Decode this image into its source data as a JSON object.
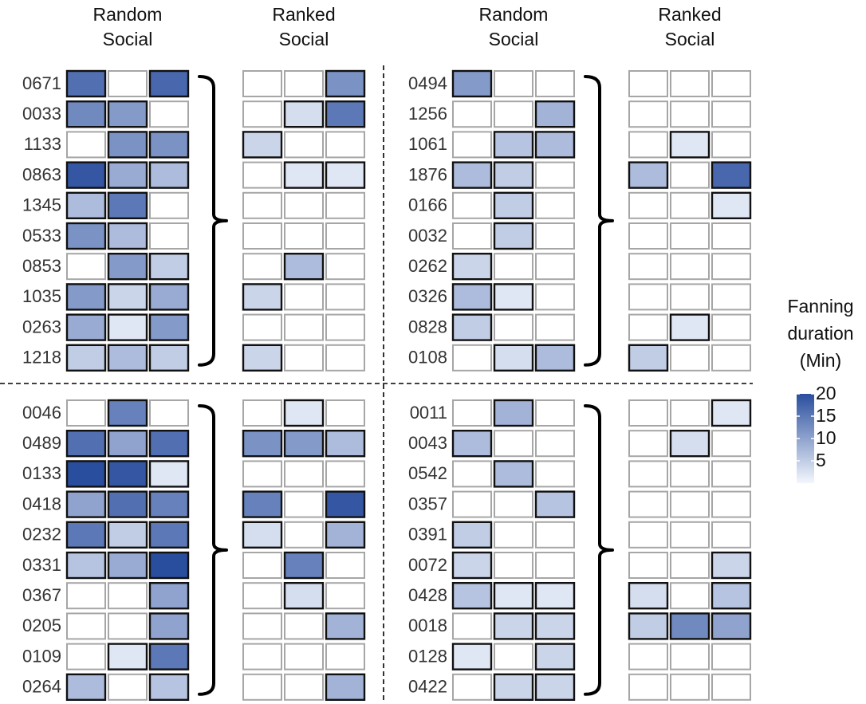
{
  "chart_data": {
    "type": "heatmap",
    "legend": {
      "title_lines": [
        "Fanning",
        "duration",
        "(Min)"
      ],
      "ticks": [
        20,
        15,
        10,
        5
      ],
      "range": [
        0,
        20
      ],
      "color_low": "#f3f7fd",
      "color_high": "#2a4e9e",
      "placement": "right"
    },
    "colors": {
      "empty_border": "#a6a6a6",
      "filled_border": "#111111",
      "empty_fill": "#ffffff",
      "separator": "#000000",
      "label_text": "#333333"
    },
    "group_headers": {
      "random": [
        "Random",
        "Social"
      ],
      "ranked": [
        "Ranked",
        "Social"
      ]
    },
    "panels": [
      {
        "rows": [
          {
            "id": "0671",
            "random": [
              16,
              0,
              17
            ],
            "ranked": [
              0,
              0,
              12
            ]
          },
          {
            "id": "0033",
            "random": [
              13,
              11,
              0
            ],
            "ranked": [
              0,
              3,
              15
            ]
          },
          {
            "id": "1133",
            "random": [
              0,
              12,
              12
            ],
            "ranked": [
              4,
              0,
              0
            ]
          },
          {
            "id": "0863",
            "random": [
              19,
              9,
              7
            ],
            "ranked": [
              0,
              2,
              2
            ]
          },
          {
            "id": "1345",
            "random": [
              7,
              15,
              0
            ],
            "ranked": [
              0,
              0,
              0
            ]
          },
          {
            "id": "0533",
            "random": [
              12,
              7,
              0
            ],
            "ranked": [
              0,
              0,
              0
            ]
          },
          {
            "id": "0853",
            "random": [
              0,
              11,
              5
            ],
            "ranked": [
              0,
              7,
              0
            ]
          },
          {
            "id": "1035",
            "random": [
              11,
              4,
              9
            ],
            "ranked": [
              4,
              0,
              0
            ]
          },
          {
            "id": "0263",
            "random": [
              9,
              2,
              11
            ],
            "ranked": [
              0,
              0,
              0
            ]
          },
          {
            "id": "1218",
            "random": [
              5,
              7,
              5
            ],
            "ranked": [
              4,
              0,
              0
            ]
          }
        ]
      },
      {
        "rows": [
          {
            "id": "0494",
            "random": [
              11,
              0,
              0
            ],
            "ranked": [
              0,
              0,
              0
            ]
          },
          {
            "id": "1256",
            "random": [
              0,
              0,
              8
            ],
            "ranked": [
              0,
              0,
              0
            ]
          },
          {
            "id": "1061",
            "random": [
              0,
              6,
              7
            ],
            "ranked": [
              0,
              2,
              0
            ]
          },
          {
            "id": "1876",
            "random": [
              7,
              5,
              0
            ],
            "ranked": [
              7,
              0,
              17
            ]
          },
          {
            "id": "0166",
            "random": [
              0,
              5,
              0
            ],
            "ranked": [
              0,
              0,
              2
            ]
          },
          {
            "id": "0032",
            "random": [
              0,
              5,
              0
            ],
            "ranked": [
              0,
              0,
              0
            ]
          },
          {
            "id": "0262",
            "random": [
              4,
              0,
              0
            ],
            "ranked": [
              0,
              0,
              0
            ]
          },
          {
            "id": "0326",
            "random": [
              7,
              2,
              0
            ],
            "ranked": [
              0,
              0,
              0
            ]
          },
          {
            "id": "0828",
            "random": [
              5,
              0,
              0
            ],
            "ranked": [
              0,
              2,
              0
            ]
          },
          {
            "id": "0108",
            "random": [
              0,
              3,
              7
            ],
            "ranked": [
              5,
              0,
              0
            ]
          }
        ]
      },
      {
        "rows": [
          {
            "id": "0046",
            "random": [
              0,
              14,
              0
            ],
            "ranked": [
              0,
              2,
              0
            ]
          },
          {
            "id": "0489",
            "random": [
              16,
              10,
              16
            ],
            "ranked": [
              12,
              11,
              7
            ]
          },
          {
            "id": "0133",
            "random": [
              20,
              19,
              2
            ],
            "ranked": [
              0,
              0,
              0
            ]
          },
          {
            "id": "0418",
            "random": [
              10,
              16,
              14
            ],
            "ranked": [
              14,
              0,
              19
            ]
          },
          {
            "id": "0232",
            "random": [
              15,
              5,
              15
            ],
            "ranked": [
              3,
              0,
              8
            ]
          },
          {
            "id": "0331",
            "random": [
              6,
              9,
              20
            ],
            "ranked": [
              0,
              14,
              0
            ]
          },
          {
            "id": "0367",
            "random": [
              0,
              0,
              10
            ],
            "ranked": [
              0,
              3,
              0
            ]
          },
          {
            "id": "0205",
            "random": [
              0,
              0,
              10
            ],
            "ranked": [
              0,
              0,
              8
            ]
          },
          {
            "id": "0109",
            "random": [
              0,
              2,
              15
            ],
            "ranked": [
              0,
              0,
              0
            ]
          },
          {
            "id": "0264",
            "random": [
              7,
              0,
              6
            ],
            "ranked": [
              0,
              0,
              8
            ]
          }
        ]
      },
      {
        "rows": [
          {
            "id": "0011",
            "random": [
              0,
              8,
              0
            ],
            "ranked": [
              0,
              0,
              2
            ]
          },
          {
            "id": "0043",
            "random": [
              7,
              0,
              0
            ],
            "ranked": [
              0,
              3,
              0
            ]
          },
          {
            "id": "0542",
            "random": [
              0,
              7,
              0
            ],
            "ranked": [
              0,
              0,
              0
            ]
          },
          {
            "id": "0357",
            "random": [
              0,
              0,
              6
            ],
            "ranked": [
              0,
              0,
              0
            ]
          },
          {
            "id": "0391",
            "random": [
              5,
              0,
              0
            ],
            "ranked": [
              0,
              0,
              0
            ]
          },
          {
            "id": "0072",
            "random": [
              4,
              0,
              0
            ],
            "ranked": [
              0,
              0,
              4
            ]
          },
          {
            "id": "0428",
            "random": [
              6,
              2,
              2
            ],
            "ranked": [
              3,
              0,
              6
            ]
          },
          {
            "id": "0018",
            "random": [
              0,
              4,
              4
            ],
            "ranked": [
              5,
              13,
              10
            ]
          },
          {
            "id": "0128",
            "random": [
              2,
              0,
              4
            ],
            "ranked": [
              0,
              0,
              0
            ]
          },
          {
            "id": "0422",
            "random": [
              0,
              4,
              4
            ],
            "ranked": [
              0,
              0,
              0
            ]
          }
        ]
      }
    ]
  }
}
